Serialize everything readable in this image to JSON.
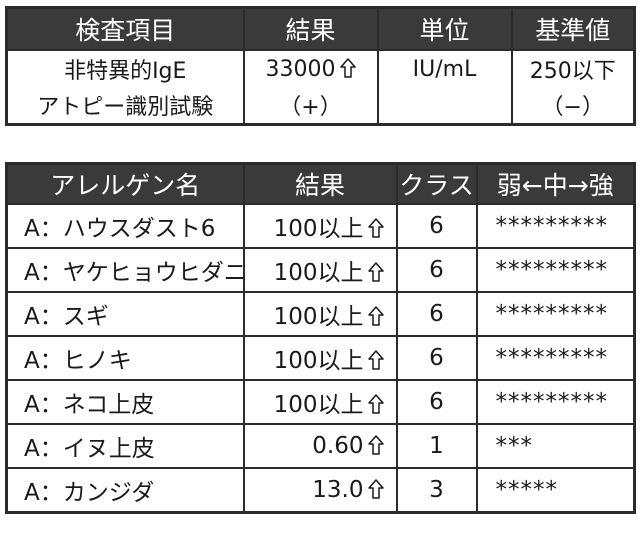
{
  "summary_table": {
    "headers": [
      "検査項目",
      "結果",
      "単位",
      "基準値"
    ],
    "rows": [
      {
        "item": "非特異的IgE",
        "result": "33000",
        "result_arrow": true,
        "unit": "IU/mL",
        "reference": "250以下"
      },
      {
        "item": "アトピー識別試験",
        "result": "（+）",
        "result_arrow": false,
        "unit": "",
        "reference": "（−）"
      }
    ]
  },
  "allergen_table": {
    "headers": [
      "アレルゲン名",
      "結果",
      "クラス",
      "弱←中→強"
    ],
    "rows": [
      {
        "name": "A：ハウスダスト6",
        "result": "100以上",
        "result_arrow": true,
        "class": "6",
        "bar": "*********"
      },
      {
        "name": "A：ヤケヒョウヒダニ",
        "result": "100以上",
        "result_arrow": true,
        "class": "6",
        "bar": "*********"
      },
      {
        "name": "A：スギ",
        "result": "100以上",
        "result_arrow": true,
        "class": "6",
        "bar": "*********"
      },
      {
        "name": "A：ヒノキ",
        "result": "100以上",
        "result_arrow": true,
        "class": "6",
        "bar": "*********"
      },
      {
        "name": "A：ネコ上皮",
        "result": "100以上",
        "result_arrow": true,
        "class": "6",
        "bar": "*********"
      },
      {
        "name": "A：イヌ上皮",
        "result": "0.60",
        "result_arrow": true,
        "class": "1",
        "bar": "***"
      },
      {
        "name": "A：カンジダ",
        "result": "13.0",
        "result_arrow": true,
        "class": "3",
        "bar": "*****"
      }
    ]
  },
  "icons": {
    "high_marker": "hollow-up-arrow-icon"
  }
}
